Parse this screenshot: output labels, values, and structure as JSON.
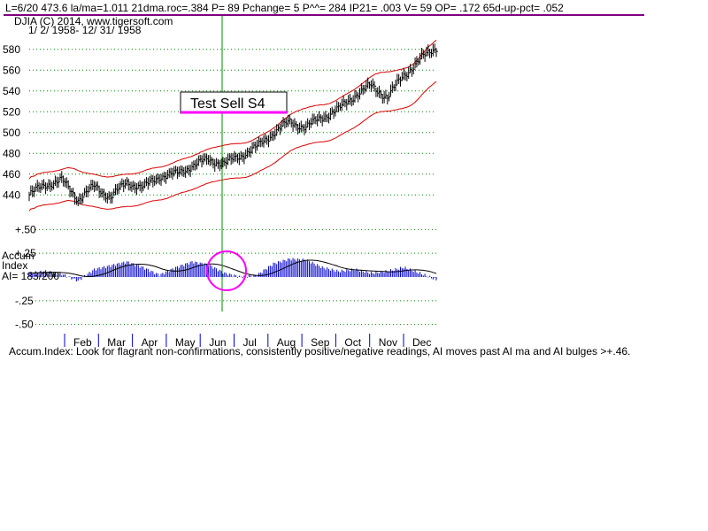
{
  "header": {
    "line1": "L=6/20  473.6  la/ma=1.011 21dma.roc=.384 P=  89 Pchange=  5 P^^= 284 IP21= .003 V= 59 OP= .172 65d-up-pct= .052",
    "line2": "DJIA   (C) 2014, www.tigersoft.com",
    "line3": "1/ 2/ 1958- 12/ 31/ 1958"
  },
  "colors": {
    "price": "#000000",
    "band": "#dd0000",
    "accum": "#0000cc",
    "accum_ma": "#000000",
    "grid": "#008800",
    "signal_line": "#008800",
    "circle": "#ff00ff",
    "header_rule": "#800080"
  },
  "annotation": {
    "label": "Test Sell S4"
  },
  "footer": {
    "text": "Accum.Index: Look for flagrant non-confirmations, consistently positive/negative readings, AI moves past AI ma and AI bulges >+.46."
  },
  "chart_data": [
    {
      "type": "line",
      "title": "DJIA 1958",
      "ylim": [
        430,
        590
      ],
      "yticks": [
        440,
        460,
        480,
        500,
        520,
        540,
        560,
        580
      ],
      "x_months": [
        "Feb",
        "Mar",
        "Apr",
        "May",
        "Jun",
        "Jul",
        "Aug",
        "Sep",
        "Oct",
        "Nov",
        "Dec"
      ],
      "grid": true,
      "signal": {
        "date": "6/20",
        "label": "Test Sell S4"
      },
      "series": [
        {
          "x": [
            0,
            10,
            20,
            30,
            40,
            50,
            60,
            70,
            80,
            90,
            100,
            110,
            120,
            130,
            140,
            150,
            160,
            170,
            180,
            190,
            200,
            210,
            220,
            230,
            240,
            250
          ],
          "values": [
            440,
            450,
            454,
            436,
            448,
            438,
            452,
            447,
            458,
            460,
            468,
            474,
            470,
            478,
            486,
            500,
            510,
            505,
            515,
            522,
            536,
            545,
            534,
            555,
            570,
            582
          ]
        }
      ]
    },
    {
      "type": "area",
      "title": "Accum Index",
      "ylabel": "AI= 183/200",
      "ylim": [
        -0.55,
        0.55
      ],
      "yticks": [
        "+.50",
        "+.25",
        "-.25",
        "-.50"
      ],
      "ytick_values": [
        0.5,
        0.25,
        -0.25,
        -0.5
      ],
      "grid": true,
      "series": [
        {
          "x": [
            0,
            10,
            20,
            30,
            40,
            50,
            60,
            70,
            80,
            90,
            100,
            110,
            120,
            130,
            140,
            150,
            160,
            170,
            180,
            190,
            200,
            210,
            220,
            230,
            240,
            250
          ],
          "values": [
            0.04,
            0.06,
            0.03,
            -0.04,
            0.08,
            0.12,
            0.16,
            0.1,
            0.02,
            0.1,
            0.16,
            0.13,
            0.04,
            0.0,
            0.02,
            0.14,
            0.19,
            0.18,
            0.1,
            0.06,
            0.08,
            0.04,
            0.06,
            0.1,
            0.04,
            -0.03
          ]
        }
      ]
    }
  ]
}
